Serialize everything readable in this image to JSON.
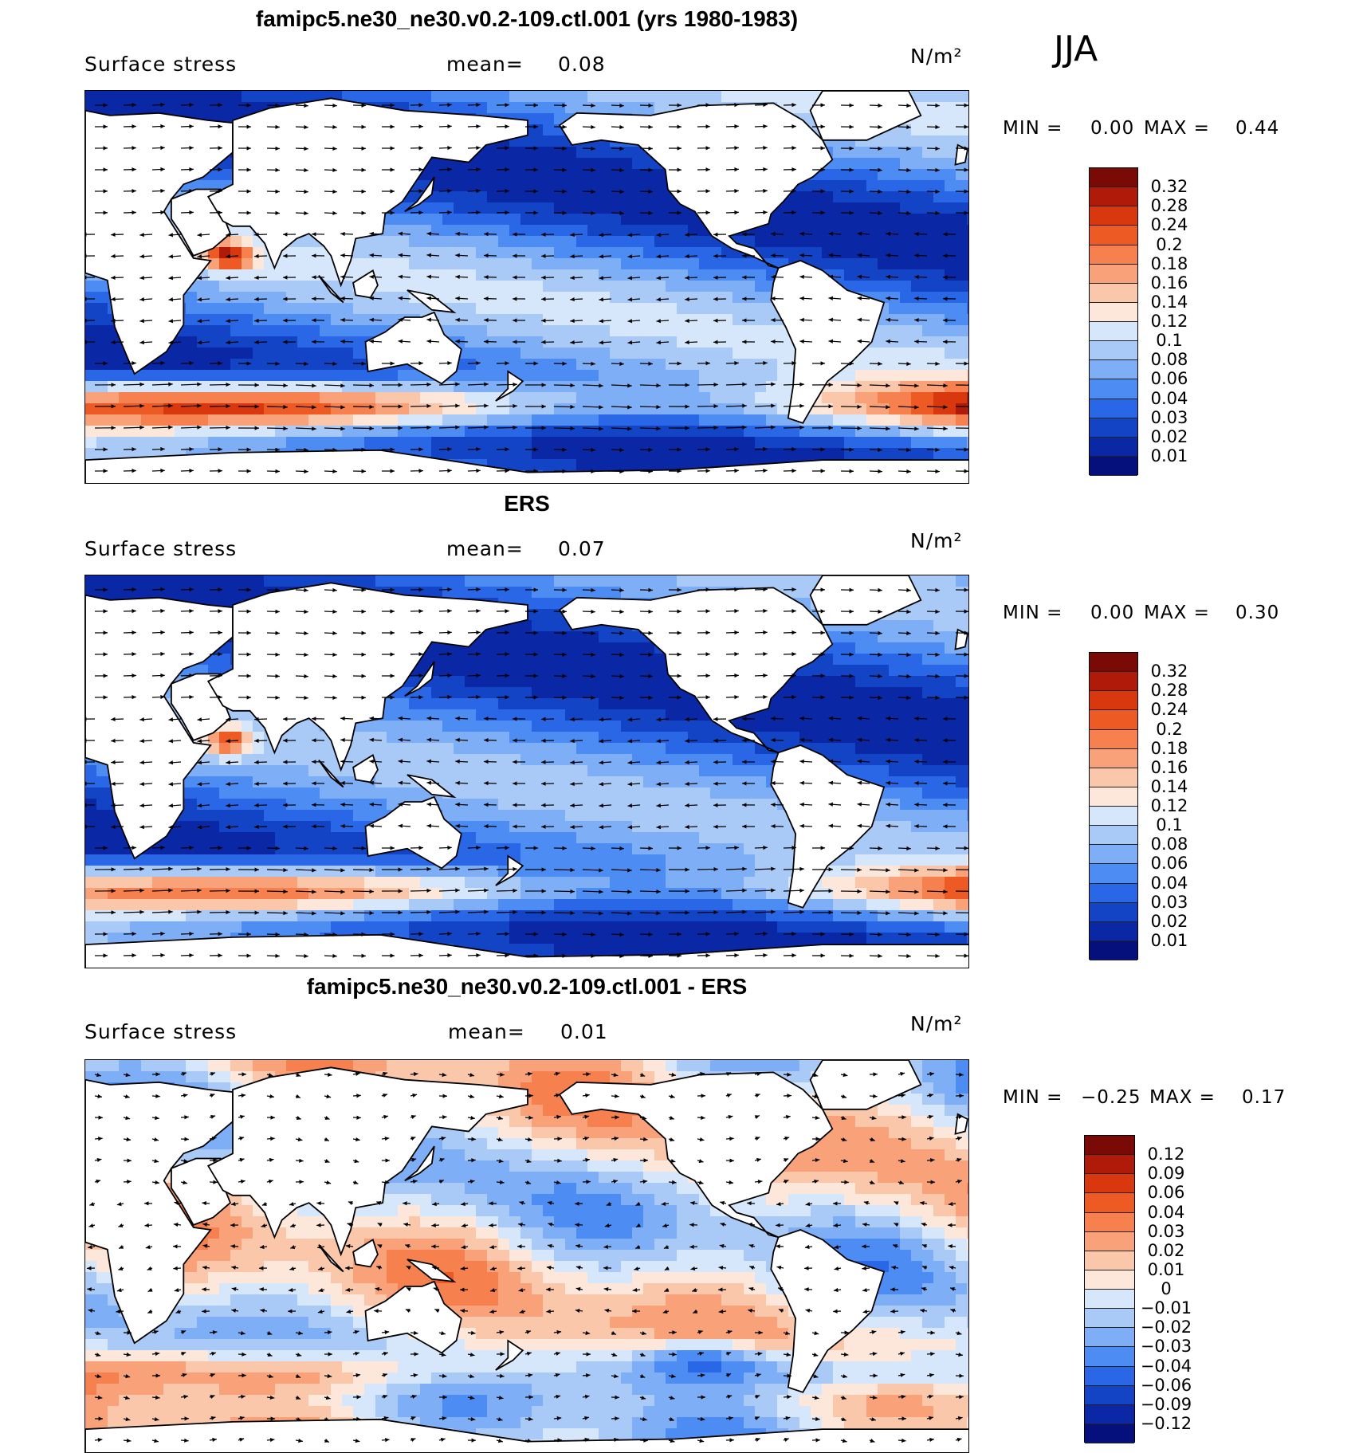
{
  "season": "JJA",
  "palette_pos": [
    "#08088a",
    "#0b2fb5",
    "#1a4fd8",
    "#2e6ef0",
    "#4d8ef5",
    "#7aaef6",
    "#a6c8f6",
    "#d6e6fb",
    "#fde3d4",
    "#fbc3a6",
    "#f99c73",
    "#f7744a",
    "#e84a1f",
    "#c82a0d",
    "#9e1007",
    "#6e0a05"
  ],
  "panels": [
    {
      "title": "famipc5.ne30_ne30.v0.2-109.ctl.001 (yrs 1980-1983)",
      "variable": "Surface stress",
      "mean_label": "mean=",
      "mean_value": "0.08",
      "units": "N/m²",
      "min_label": "MIN =",
      "min_value": "0.00",
      "max_label": "MAX =",
      "max_value": "0.44",
      "colorbar": {
        "labels": [
          "0.32",
          "0.28",
          "0.24",
          "0.2",
          "0.18",
          "0.16",
          "0.14",
          "0.12",
          "0.1",
          "0.08",
          "0.06",
          "0.04",
          "0.03",
          "0.02",
          "0.01"
        ],
        "colors": [
          "#7a0a05",
          "#b01a08",
          "#d9380e",
          "#ee5a24",
          "#f7804f",
          "#f9a27a",
          "#fbc7aa",
          "#fde7da",
          "#d6e6fb",
          "#a9c9f6",
          "#7daef6",
          "#4d8df3",
          "#2a67e6",
          "#1444c6",
          "#0a28a6",
          "#06107c"
        ]
      },
      "map_style": "model",
      "_comment": "field rendered as stylised shading"
    },
    {
      "title": "ERS",
      "variable": "Surface stress",
      "mean_label": "mean=",
      "mean_value": "0.07",
      "units": "N/m²",
      "min_label": "MIN =",
      "min_value": "0.00",
      "max_label": "MAX =",
      "max_value": "0.30",
      "colorbar": {
        "labels": [
          "0.32",
          "0.28",
          "0.24",
          "0.2",
          "0.18",
          "0.16",
          "0.14",
          "0.12",
          "0.1",
          "0.08",
          "0.06",
          "0.04",
          "0.03",
          "0.02",
          "0.01"
        ],
        "colors": [
          "#7a0a05",
          "#b01a08",
          "#d9380e",
          "#ee5a24",
          "#f7804f",
          "#f9a27a",
          "#fbc7aa",
          "#fde7da",
          "#d6e6fb",
          "#a9c9f6",
          "#7daef6",
          "#4d8df3",
          "#2a67e6",
          "#1444c6",
          "#0a28a6",
          "#06107c"
        ]
      },
      "map_style": "obs"
    },
    {
      "title": "famipc5.ne30_ne30.v0.2-109.ctl.001 - ERS",
      "variable": "Surface stress",
      "mean_label": "mean=",
      "mean_value": "0.01",
      "units": "N/m²",
      "min_label": "MIN =",
      "min_value": "−0.25",
      "max_label": "MAX =",
      "max_value": "0.17",
      "colorbar": {
        "labels": [
          "0.12",
          "0.09",
          "0.06",
          "0.04",
          "0.03",
          "0.02",
          "0.01",
          "0",
          "−0.01",
          "−0.02",
          "−0.03",
          "−0.04",
          "−0.06",
          "−0.09",
          "−0.12"
        ],
        "colors": [
          "#7a0a05",
          "#b01a08",
          "#d9380e",
          "#ee5a24",
          "#f7804f",
          "#f9a27a",
          "#fbc7aa",
          "#fde7da",
          "#d6e6fb",
          "#a9c9f6",
          "#7daef6",
          "#4d8df3",
          "#2a67e6",
          "#1444c6",
          "#0a28a6",
          "#06107c"
        ]
      },
      "map_style": "diff"
    }
  ]
}
